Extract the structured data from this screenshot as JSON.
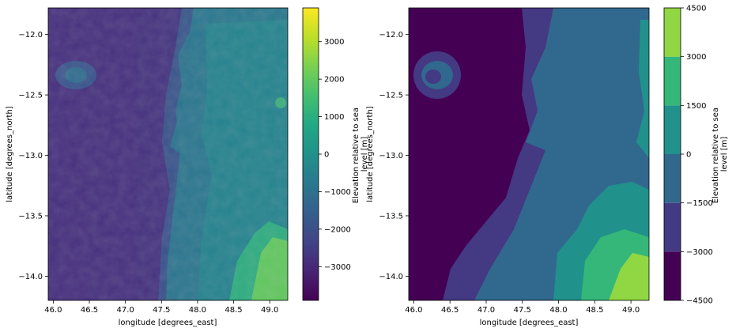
{
  "chart_data": [
    {
      "type": "heatmap",
      "title": "",
      "xlabel": "longitude [degrees_east]",
      "ylabel": "latitude [degrees_north]",
      "xlim": [
        45.93,
        49.25
      ],
      "ylim": [
        -14.2,
        -11.78
      ],
      "xticks": [
        46.0,
        46.5,
        47.0,
        47.5,
        48.0,
        48.5,
        49.0
      ],
      "xtick_labels": [
        "46.0",
        "46.5",
        "47.0",
        "47.5",
        "48.0",
        "48.5",
        "49.0"
      ],
      "yticks": [
        -12.0,
        -12.5,
        -13.0,
        -13.5,
        -14.0
      ],
      "ytick_labels": [
        "−12.0",
        "−12.5",
        "−13.0",
        "−13.5",
        "−14.0"
      ],
      "colormap": "viridis",
      "colorbar": {
        "label": "Elevation relative to sea level [m]",
        "label_lines": [
          "Elevation relative to sea",
          "level [m]"
        ],
        "range": [
          -3900,
          3900
        ],
        "ticks": [
          3000,
          2000,
          1000,
          0,
          -1000,
          -2000,
          -3000
        ],
        "tick_labels": [
          "3000",
          "2000",
          "1000",
          "0",
          "−1000",
          "−2000",
          "−3000"
        ],
        "continuous": true
      }
    },
    {
      "type": "heatmap",
      "title": "",
      "xlabel": "longitude [degrees_east]",
      "ylabel": "latitude [degrees_north]",
      "xlim": [
        45.93,
        49.25
      ],
      "ylim": [
        -14.2,
        -11.78
      ],
      "xticks": [
        46.0,
        46.5,
        47.0,
        47.5,
        48.0,
        48.5,
        49.0
      ],
      "xtick_labels": [
        "46.0",
        "46.5",
        "47.0",
        "47.5",
        "48.0",
        "48.5",
        "49.0"
      ],
      "yticks": [
        -12.0,
        -12.5,
        -13.0,
        -13.5,
        -14.0
      ],
      "ytick_labels": [
        "−12.0",
        "−12.5",
        "−13.0",
        "−13.5",
        "−14.0"
      ],
      "colormap": "viridis",
      "colorbar": {
        "label": "Elevation relative to sea level [m]",
        "label_lines": [
          "Elevation relative to sea",
          "level [m]"
        ],
        "range": [
          -4500,
          4500
        ],
        "levels": [
          -4500,
          -3000,
          -1500,
          0,
          1500,
          3000,
          4500
        ],
        "tick_labels": [
          "4500",
          "3000",
          "1500",
          "0",
          "−1500",
          "−3000",
          "−4500"
        ],
        "level_colors": [
          "#440154",
          "#443983",
          "#31688e",
          "#21918c",
          "#35b779",
          "#90d743",
          "#fde725"
        ],
        "continuous": false
      }
    }
  ]
}
